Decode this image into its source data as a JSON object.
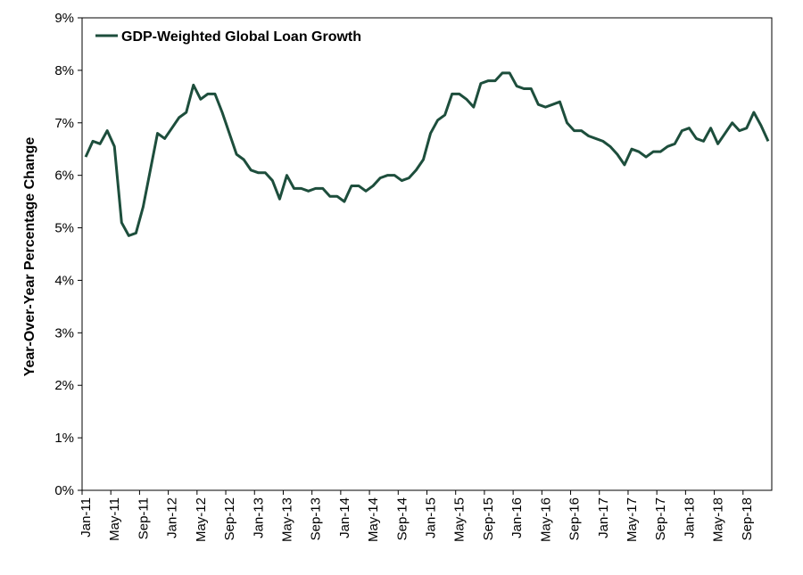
{
  "chart_data": {
    "type": "line",
    "y_label": "Year-Over-Year Percentage Change",
    "categories": [
      "Jan-11",
      null,
      null,
      null,
      "May-11",
      null,
      null,
      null,
      "Sep-11",
      null,
      null,
      null,
      "Jan-12",
      null,
      null,
      null,
      "May-12",
      null,
      null,
      null,
      "Sep-12",
      null,
      null,
      null,
      "Jan-13",
      null,
      null,
      null,
      "May-13",
      null,
      null,
      null,
      "Sep-13",
      null,
      null,
      null,
      "Jan-14",
      null,
      null,
      null,
      "May-14",
      null,
      null,
      null,
      "Sep-14",
      null,
      null,
      null,
      "Jan-15",
      null,
      null,
      null,
      "May-15",
      null,
      null,
      null,
      "Sep-15",
      null,
      null,
      null,
      "Jan-16",
      null,
      null,
      null,
      "May-16",
      null,
      null,
      null,
      "Sep-16",
      null,
      null,
      null,
      "Jan-17",
      null,
      null,
      null,
      "May-17",
      null,
      null,
      null,
      "Sep-17",
      null,
      null,
      null,
      "Jan-18",
      null,
      null,
      null,
      "May-18",
      null,
      null,
      null,
      "Sep-18",
      null,
      null,
      null
    ],
    "series": [
      {
        "name": "GDP-Weighted Global Loan Growth",
        "color": "#1d4e3c",
        "values": [
          6.35,
          6.65,
          6.6,
          6.85,
          6.55,
          5.1,
          4.85,
          4.9,
          5.4,
          6.1,
          6.8,
          6.7,
          6.9,
          7.1,
          7.2,
          7.72,
          7.45,
          7.55,
          7.55,
          7.2,
          6.8,
          6.4,
          6.3,
          6.1,
          6.05,
          6.05,
          5.9,
          5.55,
          6.0,
          5.75,
          5.75,
          5.7,
          5.75,
          5.75,
          5.6,
          5.6,
          5.5,
          5.8,
          5.8,
          5.7,
          5.8,
          5.95,
          6.0,
          6.0,
          5.9,
          5.95,
          6.1,
          6.3,
          6.8,
          7.05,
          7.15,
          7.55,
          7.55,
          7.45,
          7.3,
          7.75,
          7.8,
          7.8,
          7.95,
          7.95,
          7.7,
          7.65,
          7.65,
          7.35,
          7.3,
          7.35,
          7.4,
          7.0,
          6.85,
          6.85,
          6.75,
          6.7,
          6.65,
          6.55,
          6.4,
          6.2,
          6.5,
          6.45,
          6.35,
          6.45,
          6.45,
          6.55,
          6.6,
          6.85,
          6.9,
          6.7,
          6.65,
          6.9,
          6.6,
          6.8,
          7.0,
          6.85,
          6.9,
          7.2,
          6.95,
          6.65
        ]
      }
    ],
    "ylim": [
      0,
      9
    ],
    "yticks": [
      {
        "value": 0,
        "label": "0%"
      },
      {
        "value": 1,
        "label": "1%"
      },
      {
        "value": 2,
        "label": "2%"
      },
      {
        "value": 3,
        "label": "3%"
      },
      {
        "value": 4,
        "label": "4%"
      },
      {
        "value": 5,
        "label": "5%"
      },
      {
        "value": 6,
        "label": "6%"
      },
      {
        "value": 7,
        "label": "7%"
      },
      {
        "value": 8,
        "label": "8%"
      },
      {
        "value": 9,
        "label": "9%"
      }
    ],
    "grid": false,
    "legend": "top-left"
  }
}
